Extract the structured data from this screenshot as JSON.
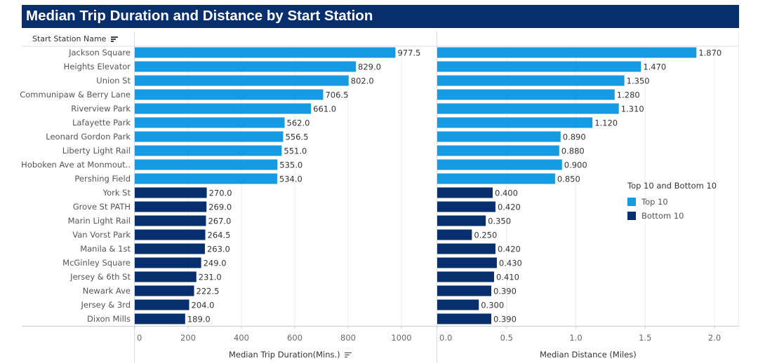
{
  "title": "Median Trip Duration and Distance by Start Station",
  "row_header": "Start Station Name",
  "legend": {
    "title": "Top 10 and Bottom 10",
    "items": [
      {
        "label": "Top 10",
        "color": "#169be3"
      },
      {
        "label": "Bottom 10",
        "color": "#082f6d"
      }
    ]
  },
  "colors": {
    "top": "#169be3",
    "bottom": "#082f6d",
    "header": "#082f6d"
  },
  "chart_data": [
    {
      "type": "bar",
      "orientation": "horizontal",
      "xlabel": "Median Trip Duration(Mins.)",
      "xlim": [
        0,
        1200
      ],
      "xticks": [
        0,
        200,
        400,
        600,
        800,
        1000
      ],
      "xtick_labels": [
        "0",
        "200",
        "400",
        "600",
        "800",
        "1000"
      ],
      "value_format": 1,
      "categories": [
        "Jackson Square",
        "Heights Elevator",
        "Union St",
        "Communipaw & Berry Lane",
        "Riverview Park",
        "Lafayette Park",
        "Leonard Gordon Park",
        "Liberty Light Rail",
        "Hoboken Ave at Monmout..",
        "Pershing Field",
        "York St",
        "Grove St PATH",
        "Marin Light Rail",
        "Van Vorst Park",
        "Manila & 1st",
        "McGinley Square",
        "Jersey & 6th St",
        "Newark Ave",
        "Jersey & 3rd",
        "Dixon Mills"
      ],
      "groups": [
        "Top 10",
        "Top 10",
        "Top 10",
        "Top 10",
        "Top 10",
        "Top 10",
        "Top 10",
        "Top 10",
        "Top 10",
        "Top 10",
        "Bottom 10",
        "Bottom 10",
        "Bottom 10",
        "Bottom 10",
        "Bottom 10",
        "Bottom 10",
        "Bottom 10",
        "Bottom 10",
        "Bottom 10",
        "Bottom 10"
      ],
      "values": [
        977.5,
        829.0,
        802.0,
        706.5,
        661.0,
        562.0,
        556.5,
        551.0,
        535.0,
        534.0,
        270.0,
        269.0,
        267.0,
        264.5,
        263.0,
        249.0,
        231.0,
        222.5,
        204.0,
        189.0
      ],
      "grid": true
    },
    {
      "type": "bar",
      "orientation": "horizontal",
      "xlabel": "Median Distance (Miles)",
      "xlim": [
        0,
        2.1
      ],
      "xticks": [
        0,
        0.5,
        1.0,
        1.5,
        2.0
      ],
      "xtick_labels": [
        "0.0",
        "0.5",
        "1.0",
        "1.5",
        "2.0"
      ],
      "value_format": 3,
      "categories": [
        "Jackson Square",
        "Heights Elevator",
        "Union St",
        "Communipaw & Berry Lane",
        "Riverview Park",
        "Lafayette Park",
        "Leonard Gordon Park",
        "Liberty Light Rail",
        "Hoboken Ave at Monmout..",
        "Pershing Field",
        "York St",
        "Grove St PATH",
        "Marin Light Rail",
        "Van Vorst Park",
        "Manila & 1st",
        "McGinley Square",
        "Jersey & 6th St",
        "Newark Ave",
        "Jersey & 3rd",
        "Dixon Mills"
      ],
      "groups": [
        "Top 10",
        "Top 10",
        "Top 10",
        "Top 10",
        "Top 10",
        "Top 10",
        "Top 10",
        "Top 10",
        "Top 10",
        "Top 10",
        "Bottom 10",
        "Bottom 10",
        "Bottom 10",
        "Bottom 10",
        "Bottom 10",
        "Bottom 10",
        "Bottom 10",
        "Bottom 10",
        "Bottom 10",
        "Bottom 10"
      ],
      "values": [
        1.87,
        1.47,
        1.35,
        1.28,
        1.31,
        1.12,
        0.89,
        0.88,
        0.9,
        0.85,
        0.4,
        0.42,
        0.35,
        0.25,
        0.42,
        0.43,
        0.41,
        0.39,
        0.3,
        0.39
      ],
      "grid": true
    }
  ]
}
